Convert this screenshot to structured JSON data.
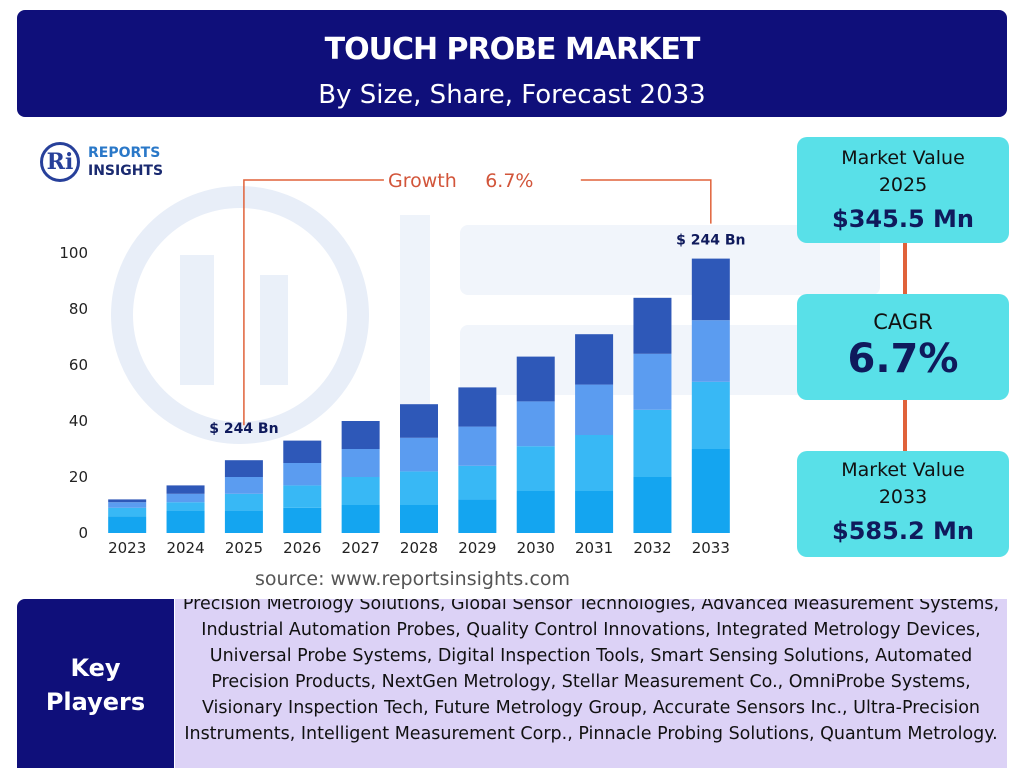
{
  "header": {
    "title": "TOUCH PROBE MARKET",
    "subtitle": "By Size, Share, Forecast 2033"
  },
  "logo": {
    "line1": "REPORTS",
    "line2": "INSIGHTS",
    "mark": "Ri"
  },
  "chart_data": {
    "type": "bar",
    "stacked": true,
    "categories": [
      "2023",
      "2024",
      "2025",
      "2026",
      "2027",
      "2028",
      "2029",
      "2030",
      "2031",
      "2032",
      "2033"
    ],
    "series": [
      {
        "color": "#14a5f0",
        "values": [
          6,
          8,
          8,
          9,
          10,
          10,
          12,
          15,
          15,
          20,
          30
        ]
      },
      {
        "color": "#38b8f5",
        "values": [
          3,
          3,
          6,
          8,
          10,
          12,
          12,
          16,
          20,
          24,
          24
        ]
      },
      {
        "color": "#5b9cf0",
        "values": [
          2,
          3,
          6,
          8,
          10,
          12,
          14,
          16,
          18,
          20,
          22
        ]
      },
      {
        "color": "#2e58b8",
        "values": [
          1,
          3,
          6,
          8,
          10,
          12,
          14,
          16,
          18,
          20,
          22
        ]
      }
    ],
    "yticks": [
      0,
      20,
      40,
      60,
      80,
      100
    ],
    "ylim": [
      0,
      100
    ],
    "grid": false,
    "annotations": {
      "start_label": "$ 244 Bn",
      "end_label": "$ 244 Bn",
      "growth_label": "Growth",
      "growth_value": "6.7%"
    }
  },
  "stats": {
    "value2025_label": "Market Value\n2025",
    "value2025_line1": "Market Value",
    "value2025_line2": "2025",
    "value2025": "$345.5 Mn",
    "cagr_label": "CAGR",
    "cagr_value": "6.7%",
    "value2033_line1": "Market Value",
    "value2033_line2": "2033",
    "value2033": "$585.2 Mn"
  },
  "source": "source: www.reportsinsights.com",
  "key_players": {
    "label_line1": "Key",
    "label_line2": "Players",
    "text": "Precision Metrology Solutions, Global Sensor Technologies, Advanced Measurement Systems, Industrial Automation Probes, Quality Control Innovations, Integrated Metrology Devices, Universal Probe Systems, Digital Inspection Tools, Smart Sensing Solutions, Automated Precision Products, NextGen Metrology, Stellar Measurement Co., OmniProbe Systems, Visionary Inspection Tech, Future Metrology Group, Accurate Sensors Inc., Ultra-Precision Instruments, Intelligent Measurement Corp., Pinnacle Probing Solutions, Quantum Metrology."
  },
  "colors": {
    "header_bg": "#0f0f7a",
    "stat_box": "#59e0e8",
    "connector": "#e0623a",
    "players_bg": "#dcd2f6",
    "growth_text": "#d2553a"
  }
}
